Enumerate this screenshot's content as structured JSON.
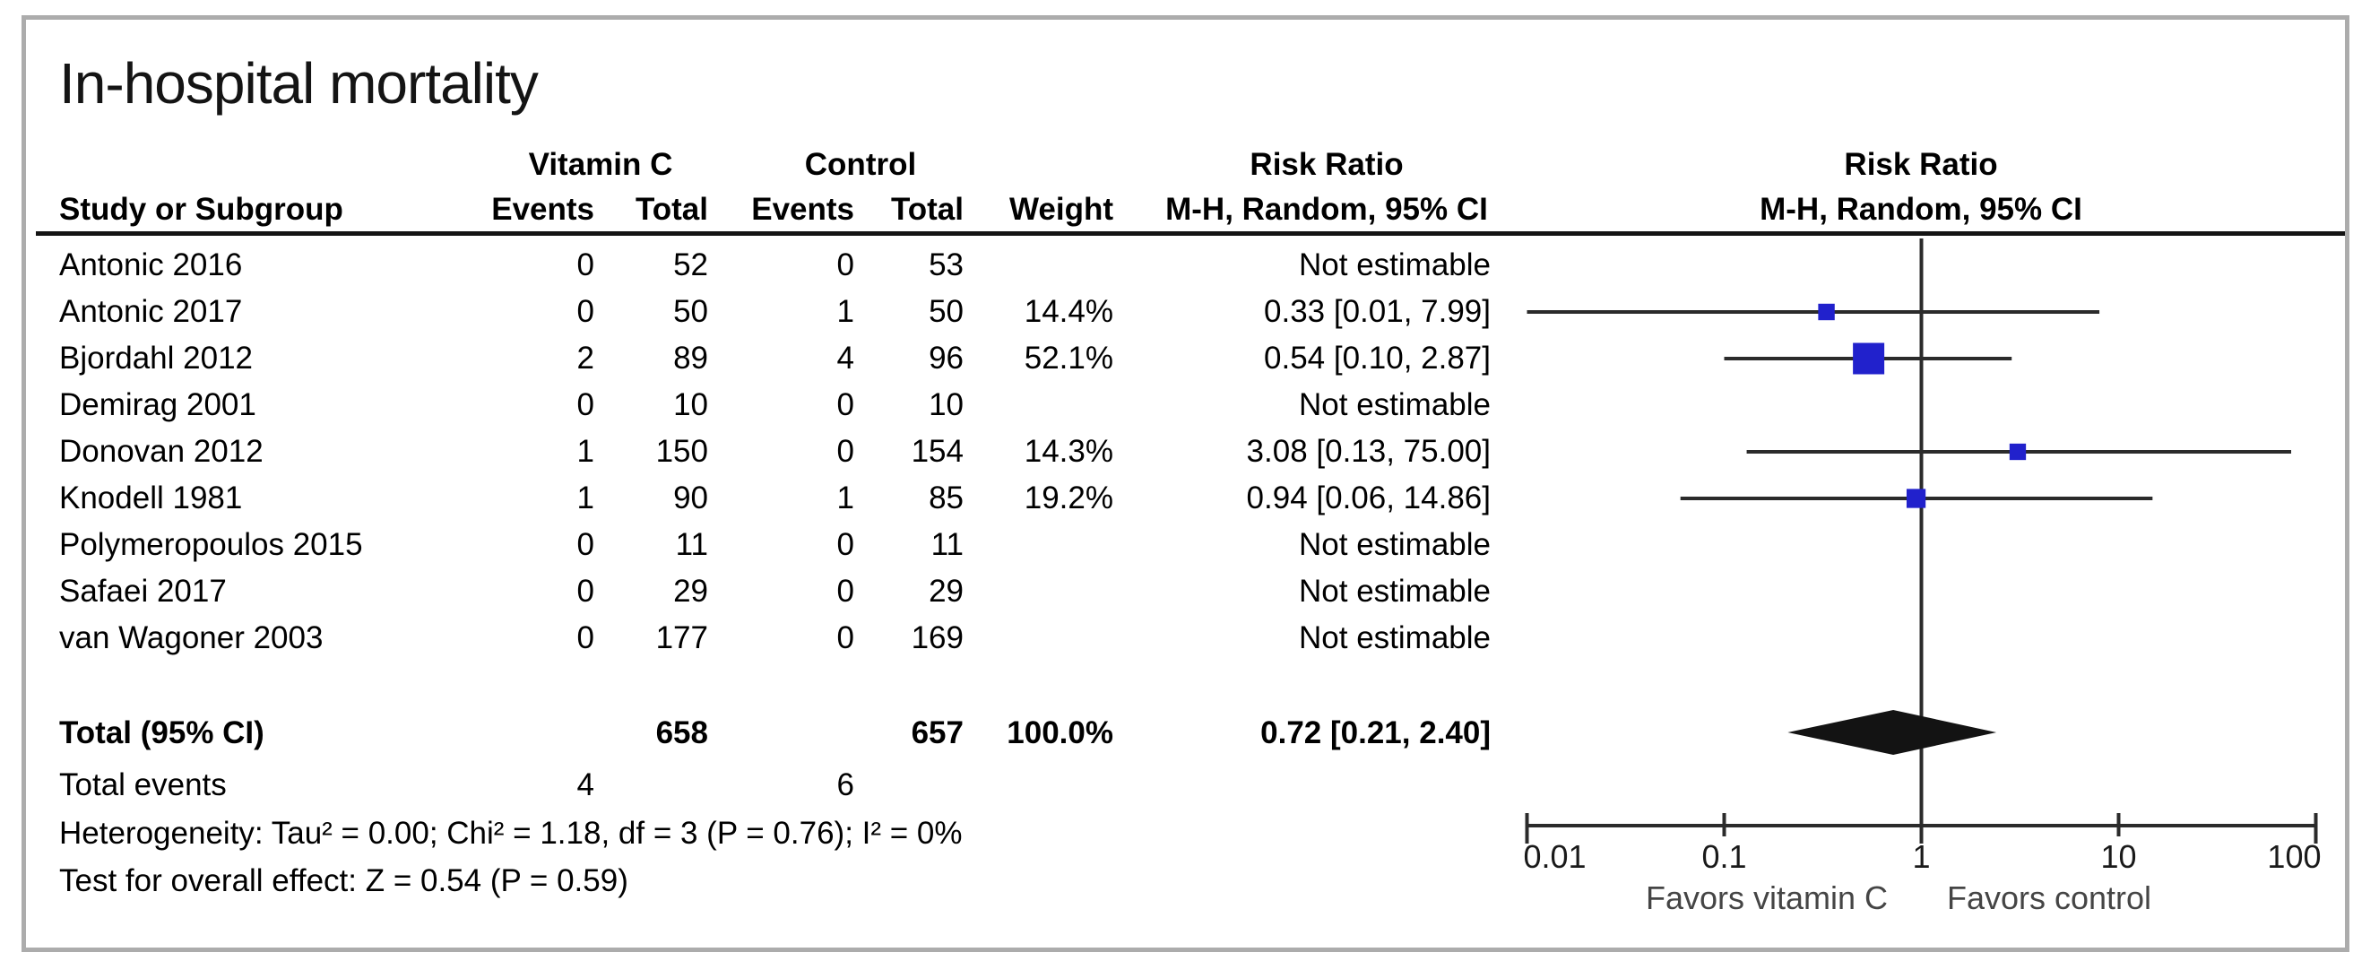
{
  "title": "In-hospital mortality",
  "header": {
    "group_treatment": "Vitamin C",
    "group_control": "Control",
    "risk_ratio_text_col": "Risk Ratio",
    "risk_ratio_plot_col": "Risk Ratio",
    "study": "Study or Subgroup",
    "events_treatment": "Events",
    "total_treatment": "Total",
    "events_control": "Events",
    "total_control": "Total",
    "weight": "Weight",
    "method_text_col": "M-H, Random, 95% CI",
    "method_plot_col": "M-H, Random, 95% CI"
  },
  "rows": [
    {
      "study": "Antonic 2016",
      "e1": "0",
      "t1": "52",
      "e2": "0",
      "t2": "53",
      "weight": "",
      "rr": "Not estimable"
    },
    {
      "study": "Antonic 2017",
      "e1": "0",
      "t1": "50",
      "e2": "1",
      "t2": "50",
      "weight": "14.4%",
      "rr": "0.33 [0.01, 7.99]"
    },
    {
      "study": "Bjordahl 2012",
      "e1": "2",
      "t1": "89",
      "e2": "4",
      "t2": "96",
      "weight": "52.1%",
      "rr": "0.54 [0.10, 2.87]"
    },
    {
      "study": "Demirag 2001",
      "e1": "0",
      "t1": "10",
      "e2": "0",
      "t2": "10",
      "weight": "",
      "rr": "Not estimable"
    },
    {
      "study": "Donovan 2012",
      "e1": "1",
      "t1": "150",
      "e2": "0",
      "t2": "154",
      "weight": "14.3%",
      "rr": "3.08 [0.13, 75.00]"
    },
    {
      "study": "Knodell 1981",
      "e1": "1",
      "t1": "90",
      "e2": "1",
      "t2": "85",
      "weight": "19.2%",
      "rr": "0.94 [0.06, 14.86]"
    },
    {
      "study": "Polymeropoulos 2015",
      "e1": "0",
      "t1": "11",
      "e2": "0",
      "t2": "11",
      "weight": "",
      "rr": "Not estimable"
    },
    {
      "study": "Safaei 2017",
      "e1": "0",
      "t1": "29",
      "e2": "0",
      "t2": "29",
      "weight": "",
      "rr": "Not estimable"
    },
    {
      "study": "van Wagoner 2003",
      "e1": "0",
      "t1": "177",
      "e2": "0",
      "t2": "169",
      "weight": "",
      "rr": "Not estimable"
    }
  ],
  "total_row": {
    "label": "Total (95% CI)",
    "t1": "658",
    "t2": "657",
    "weight": "100.0%",
    "rr": "0.72 [0.21, 2.40]"
  },
  "total_events": {
    "label": "Total events",
    "e1": "4",
    "e2": "6"
  },
  "heterogeneity": "Heterogeneity: Tau² = 0.00; Chi² = 1.18, df = 3 (P = 0.76); I² = 0%",
  "overall_effect": "Test for overall effect: Z = 0.54 (P = 0.59)",
  "chart_data": {
    "type": "scatter",
    "subtype": "forest-plot",
    "x_scale": "log10",
    "xlim": [
      0.01,
      100
    ],
    "x_ticks": [
      0.01,
      0.1,
      1,
      10,
      100
    ],
    "x_tick_labels": [
      "0.01",
      "0.1",
      "1",
      "10",
      "100"
    ],
    "favors_left": "Favors vitamin C",
    "favors_right": "Favors control",
    "null_line": 1,
    "studies": [
      {
        "name": "Antonic 2016",
        "row": 0,
        "rr": null,
        "ci_low": null,
        "ci_high": null,
        "weight_pct": null,
        "note": "Not estimable"
      },
      {
        "name": "Antonic 2017",
        "row": 1,
        "rr": 0.33,
        "ci_low": 0.01,
        "ci_high": 7.99,
        "weight_pct": 14.4
      },
      {
        "name": "Bjordahl 2012",
        "row": 2,
        "rr": 0.54,
        "ci_low": 0.1,
        "ci_high": 2.87,
        "weight_pct": 52.1
      },
      {
        "name": "Demirag 2001",
        "row": 3,
        "rr": null,
        "ci_low": null,
        "ci_high": null,
        "weight_pct": null,
        "note": "Not estimable"
      },
      {
        "name": "Donovan 2012",
        "row": 4,
        "rr": 3.08,
        "ci_low": 0.13,
        "ci_high": 75.0,
        "weight_pct": 14.3
      },
      {
        "name": "Knodell 1981",
        "row": 5,
        "rr": 0.94,
        "ci_low": 0.06,
        "ci_high": 14.86,
        "weight_pct": 19.2
      },
      {
        "name": "Polymeropoulos 2015",
        "row": 6,
        "rr": null,
        "ci_low": null,
        "ci_high": null,
        "weight_pct": null,
        "note": "Not estimable"
      },
      {
        "name": "Safaei 2017",
        "row": 7,
        "rr": null,
        "ci_low": null,
        "ci_high": null,
        "weight_pct": null,
        "note": "Not estimable"
      },
      {
        "name": "van Wagoner 2003",
        "row": 8,
        "rr": null,
        "ci_low": null,
        "ci_high": null,
        "weight_pct": null,
        "note": "Not estimable"
      }
    ],
    "total": {
      "label": "Total (95% CI)",
      "rr": 0.72,
      "ci_low": 0.21,
      "ci_high": 2.4,
      "weight_pct": 100.0
    }
  },
  "colors": {
    "title_bar_green": "#ddedd8",
    "square_blue": "#2121cc",
    "diamond_black": "#131313",
    "line_dark": "#2b2b2b",
    "frame_gray": "#acacac",
    "favors_text": "#454545"
  }
}
